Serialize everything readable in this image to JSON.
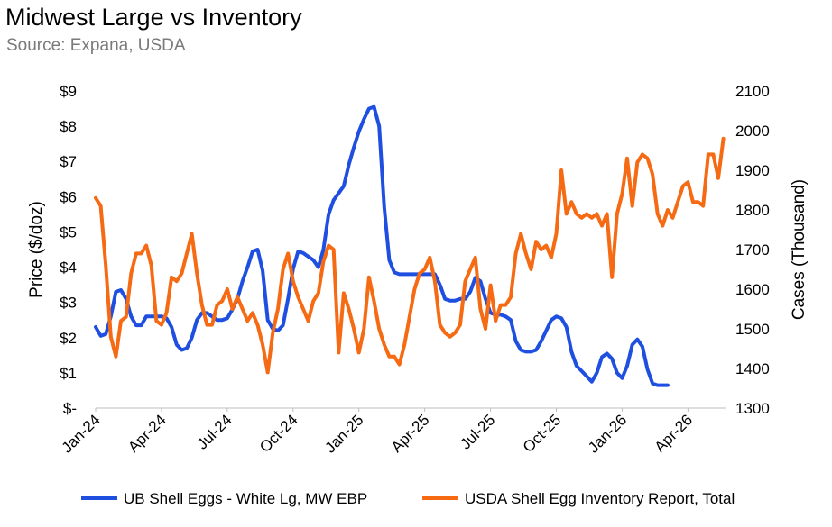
{
  "chart_data": {
    "type": "line",
    "title": "Midwest Large vs Inventory",
    "subtitle": "Source: Expana, USDA",
    "xlabel": "",
    "x_ticks": [
      "Jan-24",
      "Apr-24",
      "Jul-24",
      "Oct-24",
      "Jan-25",
      "Apr-25",
      "Jul-25",
      "Oct-25",
      "Jan-26",
      "Apr-26"
    ],
    "x_range_weeks": [
      0,
      122
    ],
    "x_tick_weeks": [
      0,
      13,
      26,
      39,
      52,
      65,
      78,
      91,
      104,
      117
    ],
    "y_left": {
      "label": "Price ($/doz)",
      "range": [
        0,
        9
      ],
      "ticks": [
        0,
        1,
        2,
        3,
        4,
        5,
        6,
        7,
        8,
        9
      ],
      "tick_labels": [
        "$-",
        "$1",
        "$2",
        "$3",
        "$4",
        "$5",
        "$6",
        "$7",
        "$8",
        "$9"
      ]
    },
    "y_right": {
      "label": "Cases (Thousand)",
      "range": [
        1300,
        2100
      ],
      "ticks": [
        1300,
        1400,
        1500,
        1600,
        1700,
        1800,
        1900,
        2000,
        2100
      ],
      "tick_labels": [
        "1300",
        "1400",
        "1500",
        "1600",
        "1700",
        "1800",
        "1900",
        "2000",
        "2100"
      ]
    },
    "series": [
      {
        "name": "UB Shell Eggs - White Lg, MW EBP",
        "axis": "left",
        "color": "#1f4fe0",
        "points": [
          [
            0,
            2.3
          ],
          [
            1,
            2.05
          ],
          [
            2,
            2.1
          ],
          [
            3,
            2.6
          ],
          [
            4,
            3.3
          ],
          [
            5,
            3.35
          ],
          [
            6,
            3.1
          ],
          [
            7,
            2.6
          ],
          [
            8,
            2.35
          ],
          [
            9,
            2.35
          ],
          [
            10,
            2.6
          ],
          [
            11,
            2.6
          ],
          [
            12,
            2.6
          ],
          [
            13,
            2.6
          ],
          [
            14,
            2.55
          ],
          [
            15,
            2.3
          ],
          [
            16,
            1.8
          ],
          [
            17,
            1.65
          ],
          [
            18,
            1.7
          ],
          [
            19,
            2.0
          ],
          [
            20,
            2.5
          ],
          [
            21,
            2.7
          ],
          [
            22,
            2.7
          ],
          [
            23,
            2.6
          ],
          [
            24,
            2.5
          ],
          [
            25,
            2.5
          ],
          [
            26,
            2.55
          ],
          [
            27,
            2.8
          ],
          [
            28,
            3.1
          ],
          [
            29,
            3.6
          ],
          [
            30,
            4.0
          ],
          [
            31,
            4.45
          ],
          [
            32,
            4.5
          ],
          [
            33,
            3.9
          ],
          [
            34,
            2.5
          ],
          [
            35,
            2.25
          ],
          [
            36,
            2.2
          ],
          [
            37,
            2.35
          ],
          [
            38,
            3.1
          ],
          [
            39,
            3.95
          ],
          [
            40,
            4.45
          ],
          [
            41,
            4.4
          ],
          [
            42,
            4.3
          ],
          [
            43,
            4.2
          ],
          [
            44,
            4.0
          ],
          [
            45,
            4.5
          ],
          [
            46,
            5.5
          ],
          [
            47,
            5.9
          ],
          [
            48,
            6.1
          ],
          [
            49,
            6.3
          ],
          [
            50,
            6.9
          ],
          [
            51,
            7.4
          ],
          [
            52,
            7.85
          ],
          [
            53,
            8.2
          ],
          [
            54,
            8.5
          ],
          [
            55,
            8.55
          ],
          [
            56,
            8.0
          ],
          [
            57,
            5.7
          ],
          [
            58,
            4.2
          ],
          [
            59,
            3.85
          ],
          [
            60,
            3.8
          ],
          [
            61,
            3.8
          ],
          [
            62,
            3.8
          ],
          [
            63,
            3.8
          ],
          [
            64,
            3.8
          ],
          [
            65,
            3.8
          ],
          [
            66,
            3.8
          ],
          [
            67,
            3.8
          ],
          [
            68,
            3.5
          ],
          [
            69,
            3.1
          ],
          [
            70,
            3.05
          ],
          [
            71,
            3.05
          ],
          [
            72,
            3.1
          ],
          [
            73,
            3.1
          ],
          [
            74,
            3.3
          ],
          [
            75,
            3.7
          ],
          [
            76,
            3.6
          ],
          [
            77,
            3.1
          ],
          [
            78,
            2.7
          ],
          [
            79,
            2.65
          ],
          [
            80,
            2.65
          ],
          [
            81,
            2.6
          ],
          [
            82,
            2.5
          ],
          [
            83,
            1.9
          ],
          [
            84,
            1.65
          ],
          [
            85,
            1.6
          ],
          [
            86,
            1.6
          ],
          [
            87,
            1.65
          ],
          [
            88,
            1.9
          ],
          [
            89,
            2.2
          ],
          [
            90,
            2.5
          ],
          [
            91,
            2.6
          ],
          [
            92,
            2.55
          ],
          [
            93,
            2.3
          ],
          [
            94,
            1.6
          ],
          [
            95,
            1.2
          ],
          [
            96,
            1.05
          ],
          [
            97,
            0.9
          ],
          [
            98,
            0.75
          ],
          [
            99,
            1.0
          ],
          [
            100,
            1.45
          ],
          [
            101,
            1.55
          ],
          [
            102,
            1.4
          ],
          [
            103,
            1.0
          ],
          [
            104,
            0.85
          ],
          [
            105,
            1.2
          ],
          [
            106,
            1.8
          ],
          [
            107,
            1.95
          ],
          [
            108,
            1.75
          ],
          [
            109,
            1.1
          ],
          [
            110,
            0.7
          ],
          [
            111,
            0.65
          ],
          [
            112,
            0.65
          ],
          [
            113,
            0.65
          ]
        ]
      },
      {
        "name": "USDA Shell Egg Inventory Report, Total",
        "axis": "right",
        "color": "#f56a12",
        "points": [
          [
            0,
            1830
          ],
          [
            1,
            1810
          ],
          [
            2,
            1660
          ],
          [
            3,
            1480
          ],
          [
            4,
            1430
          ],
          [
            5,
            1520
          ],
          [
            6,
            1530
          ],
          [
            7,
            1640
          ],
          [
            8,
            1690
          ],
          [
            9,
            1690
          ],
          [
            10,
            1710
          ],
          [
            11,
            1660
          ],
          [
            12,
            1520
          ],
          [
            13,
            1510
          ],
          [
            14,
            1540
          ],
          [
            15,
            1630
          ],
          [
            16,
            1620
          ],
          [
            17,
            1640
          ],
          [
            18,
            1690
          ],
          [
            19,
            1740
          ],
          [
            20,
            1640
          ],
          [
            21,
            1560
          ],
          [
            22,
            1510
          ],
          [
            23,
            1510
          ],
          [
            24,
            1560
          ],
          [
            25,
            1570
          ],
          [
            26,
            1600
          ],
          [
            27,
            1550
          ],
          [
            28,
            1580
          ],
          [
            29,
            1550
          ],
          [
            30,
            1520
          ],
          [
            31,
            1540
          ],
          [
            32,
            1510
          ],
          [
            33,
            1460
          ],
          [
            34,
            1390
          ],
          [
            35,
            1490
          ],
          [
            36,
            1550
          ],
          [
            37,
            1650
          ],
          [
            38,
            1690
          ],
          [
            39,
            1620
          ],
          [
            40,
            1580
          ],
          [
            41,
            1550
          ],
          [
            42,
            1520
          ],
          [
            43,
            1570
          ],
          [
            44,
            1590
          ],
          [
            45,
            1670
          ],
          [
            46,
            1710
          ],
          [
            47,
            1700
          ],
          [
            48,
            1440
          ],
          [
            49,
            1590
          ],
          [
            50,
            1550
          ],
          [
            51,
            1500
          ],
          [
            52,
            1440
          ],
          [
            53,
            1500
          ],
          [
            54,
            1630
          ],
          [
            55,
            1570
          ],
          [
            56,
            1500
          ],
          [
            57,
            1460
          ],
          [
            58,
            1430
          ],
          [
            59,
            1430
          ],
          [
            60,
            1410
          ],
          [
            61,
            1460
          ],
          [
            62,
            1530
          ],
          [
            63,
            1600
          ],
          [
            64,
            1640
          ],
          [
            65,
            1650
          ],
          [
            66,
            1680
          ],
          [
            67,
            1620
          ],
          [
            68,
            1510
          ],
          [
            69,
            1490
          ],
          [
            70,
            1480
          ],
          [
            71,
            1490
          ],
          [
            72,
            1510
          ],
          [
            73,
            1620
          ],
          [
            74,
            1650
          ],
          [
            75,
            1680
          ],
          [
            76,
            1550
          ],
          [
            77,
            1500
          ],
          [
            78,
            1610
          ],
          [
            79,
            1520
          ],
          [
            80,
            1560
          ],
          [
            81,
            1560
          ],
          [
            82,
            1580
          ],
          [
            83,
            1690
          ],
          [
            84,
            1740
          ],
          [
            85,
            1690
          ],
          [
            86,
            1650
          ],
          [
            87,
            1720
          ],
          [
            88,
            1700
          ],
          [
            89,
            1710
          ],
          [
            90,
            1680
          ],
          [
            91,
            1740
          ],
          [
            92,
            1900
          ],
          [
            93,
            1790
          ],
          [
            94,
            1820
          ],
          [
            95,
            1790
          ],
          [
            96,
            1780
          ],
          [
            97,
            1790
          ],
          [
            98,
            1780
          ],
          [
            99,
            1790
          ],
          [
            100,
            1760
          ],
          [
            101,
            1790
          ],
          [
            102,
            1630
          ],
          [
            103,
            1790
          ],
          [
            104,
            1840
          ],
          [
            105,
            1930
          ],
          [
            106,
            1810
          ],
          [
            107,
            1920
          ],
          [
            108,
            1940
          ],
          [
            109,
            1930
          ],
          [
            110,
            1890
          ],
          [
            111,
            1790
          ],
          [
            112,
            1760
          ],
          [
            113,
            1800
          ],
          [
            114,
            1780
          ],
          [
            115,
            1820
          ],
          [
            116,
            1860
          ],
          [
            117,
            1870
          ],
          [
            118,
            1820
          ],
          [
            119,
            1820
          ],
          [
            120,
            1810
          ],
          [
            121,
            1940
          ],
          [
            122,
            1940
          ],
          [
            123,
            1880
          ],
          [
            124,
            1980
          ]
        ]
      }
    ],
    "legend_position": "bottom",
    "grid": false
  }
}
